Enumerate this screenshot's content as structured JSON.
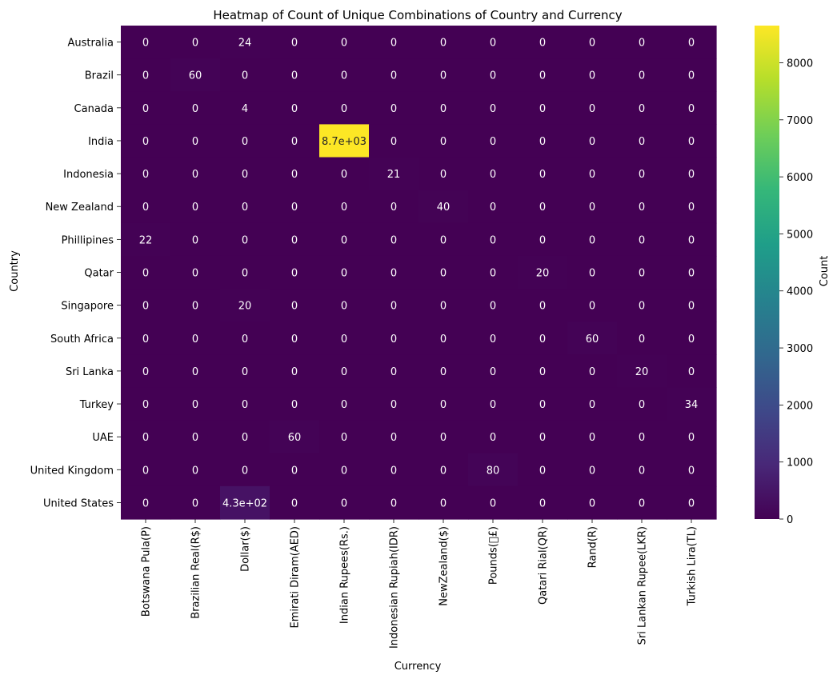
{
  "chart_data": {
    "type": "heatmap",
    "title": "Heatmap of Count of Unique Combinations of Country and Currency",
    "xlabel": "Currency",
    "ylabel": "Country",
    "rows": [
      "Australia",
      "Brazil",
      "Canada",
      "India",
      "Indonesia",
      "New Zealand",
      "Phillipines",
      "Qatar",
      "Singapore",
      "South Africa",
      "Sri Lanka",
      "Turkey",
      "UAE",
      "United Kingdom",
      "United States"
    ],
    "columns": [
      "Botswana Pula(P)",
      "Brazilian Real(R$)",
      "Dollar($)",
      "Emirati Diram(AED)",
      "Indian Rupees(Rs.)",
      "Indonesian Rupiah(IDR)",
      "NewZealand($)",
      "Pounds(\u0000£)",
      "Qatari Rial(QR)",
      "Rand(R)",
      "Sri Lankan Rupee(LKR)",
      "Turkish Lira(TL)"
    ],
    "values": [
      [
        0,
        0,
        24,
        0,
        0,
        0,
        0,
        0,
        0,
        0,
        0,
        0
      ],
      [
        0,
        60,
        0,
        0,
        0,
        0,
        0,
        0,
        0,
        0,
        0,
        0
      ],
      [
        0,
        0,
        4,
        0,
        0,
        0,
        0,
        0,
        0,
        0,
        0,
        0
      ],
      [
        0,
        0,
        0,
        0,
        8652,
        0,
        0,
        0,
        0,
        0,
        0,
        0
      ],
      [
        0,
        0,
        0,
        0,
        0,
        21,
        0,
        0,
        0,
        0,
        0,
        0
      ],
      [
        0,
        0,
        0,
        0,
        0,
        0,
        40,
        0,
        0,
        0,
        0,
        0
      ],
      [
        22,
        0,
        0,
        0,
        0,
        0,
        0,
        0,
        0,
        0,
        0,
        0
      ],
      [
        0,
        0,
        0,
        0,
        0,
        0,
        0,
        0,
        20,
        0,
        0,
        0
      ],
      [
        0,
        0,
        20,
        0,
        0,
        0,
        0,
        0,
        0,
        0,
        0,
        0
      ],
      [
        0,
        0,
        0,
        0,
        0,
        0,
        0,
        0,
        0,
        60,
        0,
        0
      ],
      [
        0,
        0,
        0,
        0,
        0,
        0,
        0,
        0,
        0,
        0,
        20,
        0
      ],
      [
        0,
        0,
        0,
        0,
        0,
        0,
        0,
        0,
        0,
        0,
        0,
        34
      ],
      [
        0,
        0,
        0,
        60,
        0,
        0,
        0,
        0,
        0,
        0,
        0,
        0
      ],
      [
        0,
        0,
        0,
        0,
        0,
        0,
        0,
        80,
        0,
        0,
        0,
        0
      ],
      [
        0,
        0,
        425,
        0,
        0,
        0,
        0,
        0,
        0,
        0,
        0,
        0
      ]
    ],
    "annotations": [
      [
        "0",
        "0",
        "24",
        "0",
        "0",
        "0",
        "0",
        "0",
        "0",
        "0",
        "0",
        "0"
      ],
      [
        "0",
        "60",
        "0",
        "0",
        "0",
        "0",
        "0",
        "0",
        "0",
        "0",
        "0",
        "0"
      ],
      [
        "0",
        "0",
        "4",
        "0",
        "0",
        "0",
        "0",
        "0",
        "0",
        "0",
        "0",
        "0"
      ],
      [
        "0",
        "0",
        "0",
        "0",
        "8.7e+03",
        "0",
        "0",
        "0",
        "0",
        "0",
        "0",
        "0"
      ],
      [
        "0",
        "0",
        "0",
        "0",
        "0",
        "21",
        "0",
        "0",
        "0",
        "0",
        "0",
        "0"
      ],
      [
        "0",
        "0",
        "0",
        "0",
        "0",
        "0",
        "40",
        "0",
        "0",
        "0",
        "0",
        "0"
      ],
      [
        "22",
        "0",
        "0",
        "0",
        "0",
        "0",
        "0",
        "0",
        "0",
        "0",
        "0",
        "0"
      ],
      [
        "0",
        "0",
        "0",
        "0",
        "0",
        "0",
        "0",
        "0",
        "20",
        "0",
        "0",
        "0"
      ],
      [
        "0",
        "0",
        "20",
        "0",
        "0",
        "0",
        "0",
        "0",
        "0",
        "0",
        "0",
        "0"
      ],
      [
        "0",
        "0",
        "0",
        "0",
        "0",
        "0",
        "0",
        "0",
        "0",
        "60",
        "0",
        "0"
      ],
      [
        "0",
        "0",
        "0",
        "0",
        "0",
        "0",
        "0",
        "0",
        "0",
        "0",
        "20",
        "0"
      ],
      [
        "0",
        "0",
        "0",
        "0",
        "0",
        "0",
        "0",
        "0",
        "0",
        "0",
        "0",
        "34"
      ],
      [
        "0",
        "0",
        "0",
        "60",
        "0",
        "0",
        "0",
        "0",
        "0",
        "0",
        "0",
        "0"
      ],
      [
        "0",
        "0",
        "0",
        "0",
        "0",
        "0",
        "0",
        "80",
        "0",
        "0",
        "0",
        "0"
      ],
      [
        "0",
        "0",
        "4.3e+02",
        "0",
        "0",
        "0",
        "0",
        "0",
        "0",
        "0",
        "0",
        "0"
      ]
    ],
    "colorbar": {
      "label": "Count",
      "colormap": "viridis",
      "range": [
        0,
        8652
      ],
      "ticks": [
        0,
        1000,
        2000,
        3000,
        4000,
        5000,
        6000,
        7000,
        8000
      ]
    },
    "grid": false
  }
}
